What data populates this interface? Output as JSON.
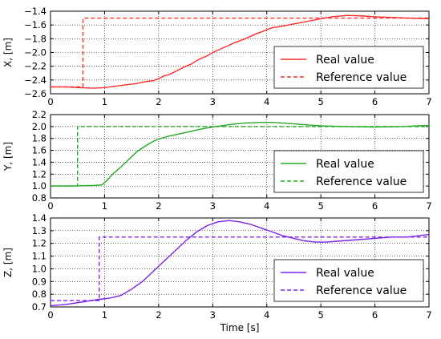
{
  "chart_data": [
    {
      "type": "line",
      "ylabel": "X, [m]",
      "xlabel": "",
      "xlim": [
        0,
        7
      ],
      "ylim": [
        -2.6,
        -1.4
      ],
      "xticks": [
        0,
        1,
        2,
        3,
        4,
        5,
        6,
        7
      ],
      "xtick_labels": [
        "0",
        "1",
        "2",
        "3",
        "4",
        "5",
        "6",
        "7"
      ],
      "yticks": [
        -2.6,
        -2.4,
        -2.2,
        -2.0,
        -1.8,
        -1.6,
        -1.4
      ],
      "ytick_labels": [
        "−2.6",
        "−2.4",
        "−2.2",
        "−2.0",
        "−1.8",
        "−1.6",
        "−1.4"
      ],
      "legend_position": "lower-right",
      "series": [
        {
          "name": "Real value",
          "style": "solid",
          "color": "#ff2b2b",
          "x": [
            0,
            0.3,
            0.5,
            0.8,
            1.0,
            1.2,
            1.4,
            1.6,
            1.8,
            1.9,
            2.0,
            2.1,
            2.2,
            2.3,
            2.4,
            2.5,
            2.6,
            2.7,
            2.8,
            2.9,
            3.0,
            3.2,
            3.4,
            3.6,
            3.8,
            3.9,
            4.0,
            4.1,
            4.2,
            4.4,
            4.6,
            4.8,
            5.0,
            5.2,
            5.5,
            5.8,
            6.0,
            6.3,
            6.6,
            7.0
          ],
          "y": [
            -2.5,
            -2.5,
            -2.51,
            -2.52,
            -2.51,
            -2.49,
            -2.47,
            -2.45,
            -2.42,
            -2.41,
            -2.38,
            -2.34,
            -2.32,
            -2.28,
            -2.24,
            -2.2,
            -2.17,
            -2.12,
            -2.08,
            -2.05,
            -2.0,
            -1.93,
            -1.86,
            -1.8,
            -1.73,
            -1.7,
            -1.67,
            -1.64,
            -1.63,
            -1.6,
            -1.57,
            -1.54,
            -1.51,
            -1.48,
            -1.46,
            -1.47,
            -1.48,
            -1.49,
            -1.5,
            -1.51
          ]
        },
        {
          "name": "Reference value",
          "style": "dashed",
          "color": "#ff2b2b",
          "x": [
            0,
            0.6,
            0.6,
            7.0
          ],
          "y": [
            -2.5,
            -2.5,
            -1.5,
            -1.5
          ]
        }
      ]
    },
    {
      "type": "line",
      "ylabel": "Y, [m]",
      "xlabel": "",
      "xlim": [
        0,
        7
      ],
      "ylim": [
        0.8,
        2.2
      ],
      "xticks": [
        0,
        1,
        2,
        3,
        4,
        5,
        6,
        7
      ],
      "xtick_labels": [
        "0",
        "1",
        "2",
        "3",
        "4",
        "5",
        "6",
        "7"
      ],
      "yticks": [
        0.8,
        1.0,
        1.2,
        1.4,
        1.6,
        1.8,
        2.0,
        2.2
      ],
      "ytick_labels": [
        "0.8",
        "1.0",
        "1.2",
        "1.4",
        "1.6",
        "1.8",
        "2.0",
        "2.2"
      ],
      "legend_position": "lower-right",
      "series": [
        {
          "name": "Real value",
          "style": "solid",
          "color": "#22aa22",
          "x": [
            0,
            0.4,
            0.8,
            0.95,
            1.05,
            1.15,
            1.3,
            1.45,
            1.6,
            1.75,
            1.9,
            2.0,
            2.2,
            2.4,
            2.6,
            2.8,
            3.0,
            3.3,
            3.6,
            3.9,
            4.1,
            4.4,
            4.7,
            5.0,
            5.5,
            6.0,
            6.5,
            7.0
          ],
          "y": [
            1.0,
            1.0,
            1.01,
            1.02,
            1.1,
            1.2,
            1.32,
            1.45,
            1.58,
            1.67,
            1.75,
            1.79,
            1.84,
            1.88,
            1.92,
            1.96,
            1.99,
            2.03,
            2.06,
            2.07,
            2.07,
            2.05,
            2.03,
            2.01,
            2.0,
            1.99,
            2.0,
            2.02
          ]
        },
        {
          "name": "Reference value",
          "style": "dashed",
          "color": "#22aa22",
          "x": [
            0,
            0.5,
            0.5,
            7.0
          ],
          "y": [
            1.0,
            1.0,
            2.0,
            2.0
          ]
        }
      ]
    },
    {
      "type": "line",
      "ylabel": "Z, [m]",
      "xlabel": "Time  [s]",
      "xlim": [
        0,
        7
      ],
      "ylim": [
        0.7,
        1.4
      ],
      "xticks": [
        0,
        1,
        2,
        3,
        4,
        5,
        6,
        7
      ],
      "xtick_labels": [
        "0",
        "1",
        "2",
        "3",
        "4",
        "5",
        "6",
        "7"
      ],
      "yticks": [
        0.7,
        0.8,
        0.9,
        1.0,
        1.1,
        1.2,
        1.3,
        1.4
      ],
      "ytick_labels": [
        "0.7",
        "0.8",
        "0.9",
        "1.0",
        "1.1",
        "1.2",
        "1.3",
        "1.4"
      ],
      "legend_position": "lower-right",
      "series": [
        {
          "name": "Real value",
          "style": "solid",
          "color": "#7b22ee",
          "x": [
            0,
            0.3,
            0.6,
            0.9,
            1.1,
            1.3,
            1.5,
            1.7,
            1.9,
            2.1,
            2.3,
            2.5,
            2.7,
            2.9,
            3.1,
            3.3,
            3.5,
            3.7,
            3.9,
            4.1,
            4.3,
            4.5,
            4.7,
            4.9,
            5.1,
            5.4,
            5.7,
            6.0,
            6.3,
            6.6,
            7.0
          ],
          "y": [
            0.71,
            0.72,
            0.74,
            0.76,
            0.77,
            0.79,
            0.84,
            0.9,
            0.98,
            1.06,
            1.14,
            1.22,
            1.29,
            1.34,
            1.37,
            1.38,
            1.37,
            1.35,
            1.32,
            1.29,
            1.26,
            1.24,
            1.22,
            1.21,
            1.21,
            1.22,
            1.23,
            1.24,
            1.25,
            1.25,
            1.27
          ]
        },
        {
          "name": "Reference value",
          "style": "dashed",
          "color": "#7b22ee",
          "x": [
            0,
            0.9,
            0.9,
            7.0
          ],
          "y": [
            0.75,
            0.75,
            1.25,
            1.25
          ]
        }
      ]
    }
  ]
}
